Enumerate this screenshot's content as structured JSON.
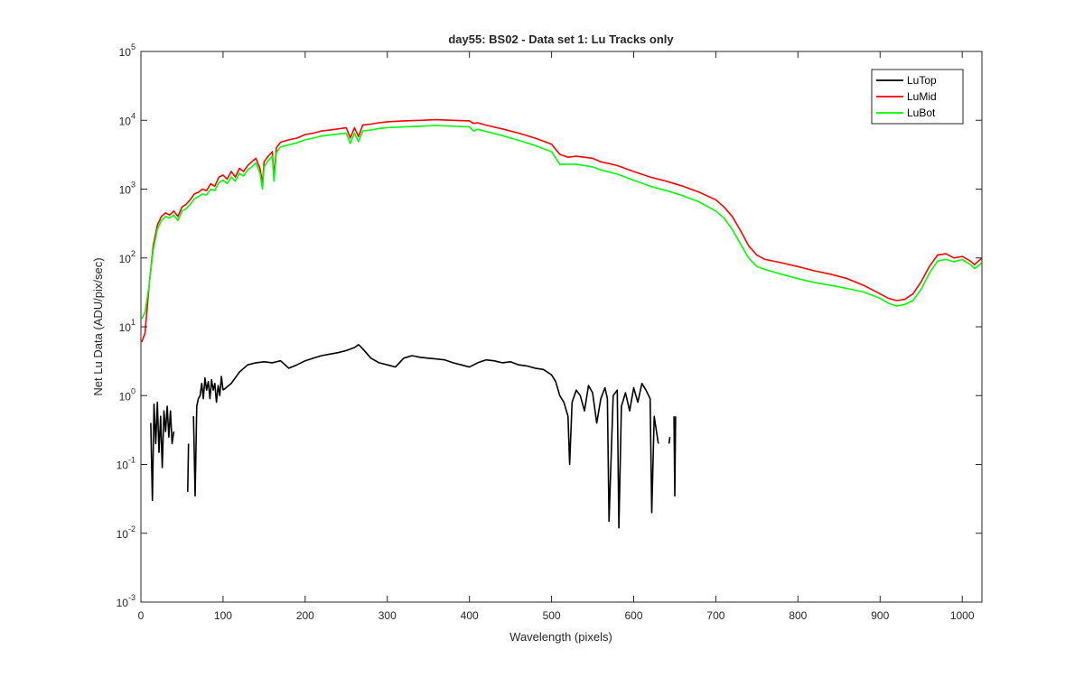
{
  "chart_data": {
    "type": "line",
    "title": "day55: BS02 - Data set 1: Lu Tracks only",
    "xlabel": "Wavelength (pixels)",
    "ylabel": "Net Lu Data (ADU/pix/sec)",
    "xlim": [
      0,
      1024
    ],
    "ylim": [
      0.001,
      100000
    ],
    "y_scale": "log",
    "grid": false,
    "legend_position": "top-right",
    "x_ticks": [
      0,
      100,
      200,
      300,
      400,
      500,
      600,
      700,
      800,
      900,
      1000
    ],
    "y_ticks": [
      {
        "base": "10",
        "exp": "-3",
        "value": 0.001
      },
      {
        "base": "10",
        "exp": "-2",
        "value": 0.01
      },
      {
        "base": "10",
        "exp": "-1",
        "value": 0.1
      },
      {
        "base": "10",
        "exp": "0",
        "value": 1
      },
      {
        "base": "10",
        "exp": "1",
        "value": 10
      },
      {
        "base": "10",
        "exp": "2",
        "value": 100
      },
      {
        "base": "10",
        "exp": "3",
        "value": 1000
      },
      {
        "base": "10",
        "exp": "4",
        "value": 10000
      },
      {
        "base": "10",
        "exp": "5",
        "value": 100000
      }
    ],
    "series": [
      {
        "name": "LuTop",
        "color": "#000000",
        "segments": [
          {
            "x": [
              12,
              14,
              16,
              18,
              20,
              22,
              24,
              26,
              28,
              30,
              32,
              34,
              36,
              38,
              40
            ],
            "y": [
              0.4,
              0.03,
              0.75,
              0.2,
              0.8,
              0.15,
              0.5,
              0.09,
              0.6,
              0.3,
              0.7,
              0.25,
              0.6,
              0.2,
              0.3
            ]
          },
          {
            "x": [
              57,
              58
            ],
            "y": [
              0.04,
              0.2
            ]
          },
          {
            "x": [
              64,
              66,
              68,
              70,
              72,
              74,
              76,
              78,
              80,
              82,
              84,
              86,
              88,
              90,
              92,
              94,
              96,
              98,
              100
            ],
            "y": [
              0.5,
              0.035,
              0.7,
              0.9,
              1.0,
              1.5,
              0.9,
              1.8,
              1.2,
              1.6,
              0.9,
              1.7,
              1.2,
              1.5,
              0.8,
              1.4,
              1.0,
              1.9,
              1.2
            ]
          },
          {
            "x": [
              100,
              110,
              120,
              130,
              140,
              150,
              160,
              170,
              180,
              190,
              200,
              210,
              220,
              230,
              240,
              250,
              260,
              265,
              270,
              280,
              290,
              300,
              310,
              320,
              330,
              340,
              350,
              360,
              370,
              380,
              390,
              400,
              410,
              420,
              430,
              440,
              450,
              460,
              470,
              480,
              490,
              500,
              505,
              510,
              515,
              520,
              522,
              525,
              530,
              535,
              540,
              545,
              550,
              555,
              560,
              565,
              568,
              570,
              575,
              580,
              582,
              585,
              590,
              595,
              600,
              605,
              610,
              615,
              620,
              622,
              625,
              630
            ],
            "y": [
              1.2,
              1.5,
              2.2,
              2.8,
              3.0,
              3.1,
              3.0,
              3.2,
              2.5,
              2.8,
              3.2,
              3.5,
              3.8,
              4.0,
              4.2,
              4.5,
              5.0,
              5.5,
              4.8,
              3.5,
              3.0,
              2.8,
              2.6,
              3.5,
              3.8,
              3.6,
              3.5,
              3.4,
              3.3,
              3.0,
              2.8,
              2.6,
              3.0,
              3.3,
              3.2,
              3.0,
              3.1,
              2.8,
              2.7,
              2.5,
              2.4,
              2.0,
              1.6,
              1.0,
              0.8,
              0.5,
              0.1,
              0.8,
              1.2,
              1.0,
              0.6,
              1.4,
              1.1,
              0.4,
              0.9,
              1.3,
              0.9,
              0.015,
              1.0,
              1.2,
              0.012,
              0.7,
              1.1,
              0.6,
              1.3,
              0.8,
              1.5,
              1.2,
              0.9,
              0.02,
              0.5,
              0.2
            ]
          },
          {
            "x": [
              643,
              644
            ],
            "y": [
              0.2,
              0.25
            ]
          },
          {
            "x": [
              649,
              650,
              651
            ],
            "y": [
              0.5,
              0.035,
              0.5
            ]
          }
        ]
      },
      {
        "name": "LuMid",
        "color": "#ff0000",
        "segments": [
          {
            "x": [
              1,
              5,
              10,
              15,
              20,
              25,
              30,
              35,
              40,
              45,
              50,
              55,
              60,
              65,
              70,
              75,
              80,
              85,
              90,
              95,
              100,
              105,
              110,
              115,
              120,
              125,
              130,
              135,
              140,
              145,
              148,
              150,
              155,
              160,
              162,
              165,
              170,
              180,
              190,
              200,
              210,
              220,
              230,
              240,
              250,
              255,
              260,
              265,
              270,
              280,
              290,
              300,
              320,
              340,
              360,
              380,
              400,
              405,
              410,
              420,
              440,
              460,
              480,
              500,
              510,
              520,
              530,
              540,
              550,
              560,
              580,
              600,
              620,
              640,
              660,
              680,
              700,
              710,
              720,
              730,
              740,
              750,
              760,
              780,
              800,
              820,
              840,
              860,
              880,
              900,
              910,
              920,
              930,
              940,
              950,
              960,
              970,
              980,
              990,
              1000,
              1010,
              1015,
              1024
            ],
            "y": [
              6,
              8,
              40,
              150,
              300,
              400,
              450,
              420,
              480,
              400,
              550,
              600,
              700,
              850,
              900,
              1000,
              950,
              1200,
              1100,
              1500,
              1600,
              1400,
              1800,
              1500,
              2000,
              1800,
              2200,
              2500,
              2800,
              2000,
              1200,
              2500,
              3000,
              3500,
              1500,
              4000,
              4800,
              5200,
              5500,
              6200,
              6500,
              7000,
              7200,
              7500,
              7800,
              5500,
              7800,
              5800,
              8500,
              8800,
              9200,
              9500,
              9800,
              10000,
              10200,
              10000,
              9800,
              9000,
              9200,
              8500,
              7500,
              6500,
              5500,
              4500,
              3200,
              2900,
              3000,
              2900,
              2800,
              2500,
              2200,
              1800,
              1500,
              1300,
              1100,
              900,
              700,
              550,
              400,
              250,
              150,
              110,
              95,
              85,
              75,
              65,
              58,
              50,
              40,
              30,
              26,
              24,
              25,
              30,
              45,
              75,
              110,
              115,
              100,
              105,
              90,
              80,
              100
            ]
          }
        ]
      },
      {
        "name": "LuBot",
        "color": "#00ff00",
        "segments": [
          {
            "x": [
              1,
              5,
              10,
              15,
              20,
              25,
              30,
              35,
              40,
              45,
              50,
              55,
              60,
              65,
              70,
              75,
              80,
              85,
              90,
              95,
              100,
              105,
              110,
              115,
              120,
              125,
              130,
              135,
              140,
              145,
              148,
              150,
              155,
              160,
              162,
              165,
              170,
              180,
              190,
              200,
              210,
              220,
              230,
              240,
              250,
              255,
              260,
              265,
              270,
              280,
              290,
              300,
              320,
              340,
              360,
              380,
              400,
              405,
              410,
              420,
              440,
              460,
              480,
              500,
              510,
              520,
              530,
              540,
              550,
              560,
              580,
              600,
              620,
              640,
              660,
              680,
              700,
              710,
              720,
              730,
              740,
              750,
              760,
              780,
              800,
              820,
              840,
              860,
              880,
              900,
              910,
              920,
              930,
              940,
              950,
              960,
              970,
              980,
              990,
              1000,
              1010,
              1015,
              1024
            ],
            "y": [
              13,
              16,
              40,
              130,
              260,
              350,
              400,
              380,
              420,
              350,
              480,
              520,
              600,
              720,
              780,
              850,
              820,
              1000,
              950,
              1250,
              1350,
              1200,
              1500,
              1300,
              1700,
              1550,
              1900,
              2100,
              2400,
              1700,
              1000,
              2100,
              2600,
              3000,
              1300,
              3400,
              4100,
              4400,
              4700,
              5200,
              5500,
              5900,
              6100,
              6300,
              6500,
              4600,
              6500,
              4900,
              7000,
              7200,
              7600,
              7800,
              8000,
              8200,
              8400,
              8200,
              8000,
              7000,
              7400,
              6900,
              6000,
              5100,
              4300,
              3500,
              2300,
              2300,
              2300,
              2200,
              2100,
              1900,
              1650,
              1350,
              1100,
              950,
              800,
              650,
              480,
              380,
              260,
              160,
              100,
              75,
              68,
              58,
              50,
              44,
              40,
              36,
              32,
              26,
              22,
              20,
              21,
              24,
              35,
              60,
              90,
              95,
              88,
              95,
              80,
              70,
              85
            ]
          }
        ]
      }
    ]
  }
}
